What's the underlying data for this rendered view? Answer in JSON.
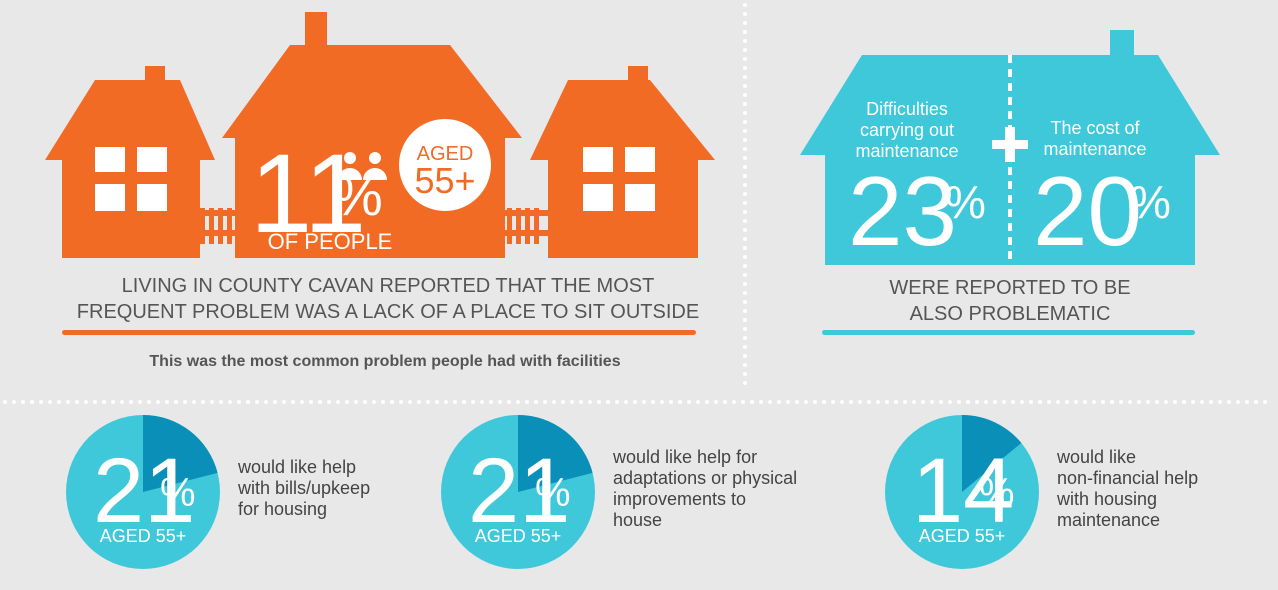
{
  "left_panel": {
    "stat": {
      "value": 11,
      "percent_sign": "%",
      "badge_line1": "AGED",
      "badge_line2": "55+",
      "caption": "OF PEOPLE"
    },
    "description": [
      "LIVING IN COUNTY CAVAN REPORTED THAT THE MOST",
      "FREQUENT PROBLEM WAS A LACK OF A PLACE TO SIT OUTSIDE"
    ],
    "note": "This was the most common problem people had with facilities"
  },
  "right_panel": {
    "items": [
      {
        "label": [
          "Difficulties",
          "carrying out",
          "maintenance"
        ],
        "value": 23,
        "percent_sign": "%"
      },
      {
        "label": [
          "The cost of",
          "maintenance"
        ],
        "value": 20,
        "percent_sign": "%"
      }
    ],
    "description": [
      "WERE REPORTED TO BE",
      "ALSO PROBLEMATIC"
    ]
  },
  "bottom_panel": {
    "items": [
      {
        "value": 21,
        "percent_sign": "%",
        "caption": "AGED 55+",
        "description": [
          "would like help",
          "with bills/upkeep",
          "for housing"
        ]
      },
      {
        "value": 21,
        "percent_sign": "%",
        "caption": "AGED 55+",
        "description": [
          "would like help for",
          "adaptations or physical",
          "improvements to",
          "house"
        ]
      },
      {
        "value": 14,
        "percent_sign": "%",
        "caption": "AGED 55+",
        "description": [
          "would like",
          "non-financial help",
          "with housing",
          "maintenance"
        ]
      }
    ]
  }
}
